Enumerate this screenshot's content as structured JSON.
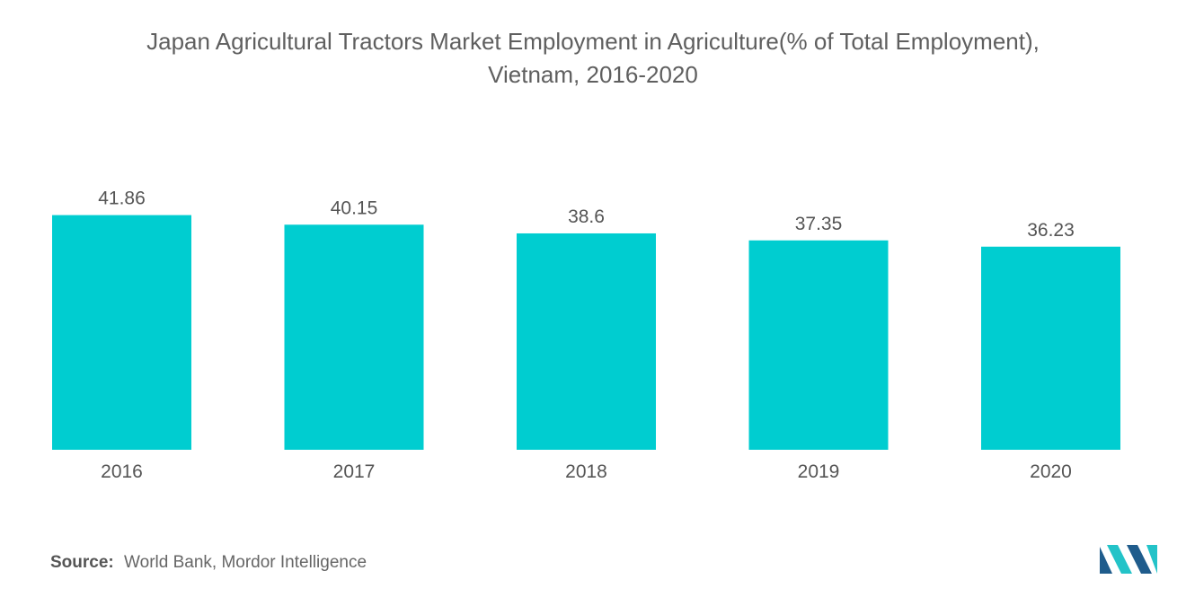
{
  "title": {
    "line1": "Japan Agricultural Tractors Market Employment in Agriculture(% of Total Employment),",
    "line2": "Vietnam, 2016-2020"
  },
  "source": {
    "label": "Source:",
    "text": "World Bank, Mordor Intelligence"
  },
  "colors": {
    "bar": "#00CDD0",
    "logo_dark": "#1f5c8c",
    "logo_light": "#23c3c8"
  },
  "chart_data": {
    "type": "bar",
    "categories": [
      "2016",
      "2017",
      "2018",
      "2019",
      "2020"
    ],
    "values": [
      41.86,
      40.15,
      38.6,
      37.35,
      36.23
    ],
    "data_labels": [
      "41.86",
      "40.15",
      "38.6",
      "37.35",
      "36.23"
    ],
    "xlabel": "",
    "ylabel": "",
    "ylim": [
      0,
      45
    ],
    "grid": false,
    "legend": "none"
  }
}
